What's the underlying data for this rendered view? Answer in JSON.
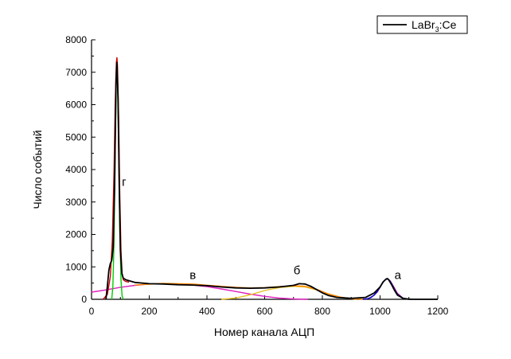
{
  "chart_data": {
    "type": "line",
    "title": "",
    "xlabel": "Номер канала АЦП",
    "ylabel": "Число событий",
    "xlim": [
      0,
      1200
    ],
    "ylim": [
      0,
      8000
    ],
    "x_ticks": [
      0,
      200,
      400,
      600,
      800,
      1000,
      1200
    ],
    "y_ticks": [
      0,
      1000,
      2000,
      3000,
      4000,
      5000,
      6000,
      7000,
      8000
    ],
    "grid": false,
    "legend_position": "top-right",
    "legend": {
      "entries": [
        {
          "text_main": "LaBr",
          "text_sub": "3",
          "text_tail": ":Ce",
          "color": "#000000"
        }
      ]
    },
    "annotations": [
      {
        "text": "г",
        "x": 105,
        "y": 3500
      },
      {
        "text": "в",
        "x": 340,
        "y": 620
      },
      {
        "text": "б",
        "x": 700,
        "y": 770
      },
      {
        "text": "а",
        "x": 1050,
        "y": 620
      }
    ],
    "series": [
      {
        "name": "LaBr3:Ce",
        "color": "#000000",
        "x": [
          50,
          55,
          60,
          65,
          70,
          75,
          80,
          85,
          88,
          92,
          96,
          100,
          105,
          110,
          120,
          150,
          200,
          250,
          300,
          350,
          400,
          450,
          500,
          550,
          600,
          650,
          700,
          720,
          740,
          760,
          780,
          800,
          820,
          850,
          900,
          950,
          980,
          1000,
          1010,
          1020,
          1025,
          1030,
          1040,
          1050,
          1060,
          1080,
          1100,
          1110,
          1150,
          1200
        ],
        "y": [
          0,
          400,
          900,
          1100,
          1200,
          1600,
          3500,
          6800,
          7300,
          6200,
          3500,
          1500,
          800,
          650,
          600,
          520,
          480,
          470,
          450,
          440,
          420,
          380,
          350,
          340,
          350,
          380,
          430,
          480,
          470,
          400,
          300,
          200,
          120,
          60,
          30,
          60,
          200,
          380,
          530,
          620,
          640,
          600,
          450,
          280,
          130,
          30,
          5,
          0,
          0,
          0
        ]
      },
      {
        "name": "",
        "color": "#cc0000",
        "x": [
          40,
          55,
          65,
          72,
          78,
          82,
          86,
          88,
          90,
          94,
          98,
          102,
          106,
          110,
          118,
          130
        ],
        "y": [
          0,
          150,
          700,
          1800,
          4000,
          6000,
          7300,
          7450,
          7200,
          5600,
          3200,
          1500,
          800,
          600,
          550,
          530
        ]
      },
      {
        "name": "",
        "color": "#00cc00",
        "x": [
          70,
          74,
          78,
          82,
          86,
          88,
          90,
          94,
          98,
          102,
          106,
          110
        ],
        "y": [
          0,
          400,
          1800,
          4600,
          6900,
          7100,
          6800,
          4700,
          2100,
          600,
          100,
          0
        ]
      },
      {
        "name": "",
        "color": "#e020c0",
        "x": [
          0,
          50,
          100,
          150,
          200,
          250,
          300,
          350,
          400,
          450,
          500,
          550,
          600,
          650,
          700,
          750
        ],
        "y": [
          220,
          290,
          370,
          430,
          470,
          480,
          470,
          440,
          390,
          320,
          240,
          160,
          90,
          40,
          10,
          0
        ]
      },
      {
        "name": "",
        "color": "#e8c020",
        "x": [
          450,
          500,
          550,
          600,
          650,
          700,
          740,
          780,
          820,
          870,
          920
        ],
        "y": [
          0,
          40,
          140,
          270,
          360,
          400,
          380,
          290,
          160,
          50,
          0
        ]
      },
      {
        "name": "",
        "color": "#ff8800",
        "x": [
          150,
          250,
          350,
          450,
          500,
          550,
          600,
          650,
          700,
          740,
          780,
          820,
          860,
          900,
          950
        ],
        "y": [
          440,
          490,
          470,
          400,
          370,
          350,
          360,
          390,
          420,
          400,
          310,
          170,
          70,
          20,
          0
        ]
      },
      {
        "name": "",
        "color": "#0000cc",
        "x": [
          940,
          960,
          980,
          1000,
          1010,
          1020,
          1025,
          1030,
          1040,
          1050,
          1060,
          1080,
          1100
        ],
        "y": [
          0,
          20,
          130,
          370,
          520,
          620,
          640,
          610,
          470,
          280,
          140,
          30,
          0
        ]
      },
      {
        "name": "",
        "color": "#8800aa",
        "x": [
          950,
          970,
          990,
          1005,
          1015,
          1025,
          1035,
          1045,
          1060,
          1080,
          1100
        ],
        "y": [
          0,
          60,
          220,
          450,
          580,
          630,
          570,
          420,
          180,
          30,
          0
        ]
      }
    ]
  }
}
